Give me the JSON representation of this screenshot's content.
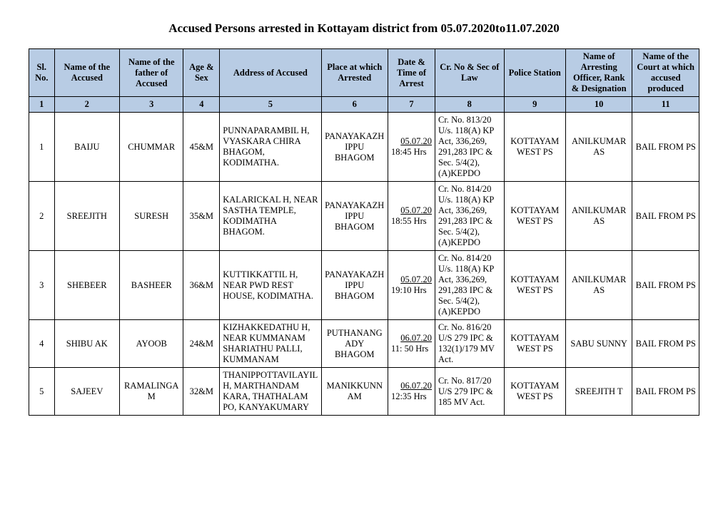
{
  "title": "Accused Persons arrested in  Kottayam   district from  05.07.2020to11.07.2020",
  "headers": {
    "c1": "Sl. No.",
    "c2": "Name of the Accused",
    "c3": "Name of the father of Accused",
    "c4": "Age & Sex",
    "c5": "Address of Accused",
    "c6": "Place at which Arrested",
    "c7": "Date & Time of Arrest",
    "c8": "Cr. No & Sec of Law",
    "c9": "Police Station",
    "c10": "Name of Arresting Officer, Rank & Designation",
    "c11": "Name of the Court at which accused produced"
  },
  "colnums": [
    "1",
    "2",
    "3",
    "4",
    "5",
    "6",
    "7",
    "8",
    "9",
    "10",
    "11"
  ],
  "rows": [
    {
      "sl": "1",
      "accused": "BAIJU",
      "father": "CHUMMAR",
      "age_sex": "45&M",
      "address": "PUNNAPARAMBIL H, VYASKARA CHIRA BHAGOM, KODIMATHA.",
      "place": "PANAYAKAZHIPPU BHAGOM",
      "date": "05.07.20",
      "time": "18:45 Hrs",
      "law": "Cr. No. 813/20 U/s. 118(A) KP Act,  336,269, 291,283 IPC & Sec. 5/4(2),(A)KEPDO",
      "station": "KOTTAYAM WEST PS",
      "officer": "ANILKUMAR AS",
      "court": "BAIL FROM PS"
    },
    {
      "sl": "2",
      "accused": "SREEJITH",
      "father": "SURESH",
      "age_sex": "35&M",
      "address": "KALARICKAL H, NEAR SASTHA TEMPLE, KODIMATHA BHAGOM.",
      "place": "PANAYAKAZHIPPU BHAGOM",
      "date": "05.07.20",
      "time": "18:55 Hrs",
      "law": "Cr. No. 814/20 U/s. 118(A) KP Act,  336,269, 291,283 IPC & Sec. 5/4(2),(A)KEPDO",
      "station": "KOTTAYAM WEST PS",
      "officer": "ANILKUMAR AS",
      "court": "BAIL FROM PS"
    },
    {
      "sl": "3",
      "accused": "SHEBEER",
      "father": "BASHEER",
      "age_sex": "36&M",
      "address": "KUTTIKKATTIL H, NEAR PWD REST HOUSE, KODIMATHA.",
      "place": "PANAYAKAZHIPPU BHAGOM",
      "date": "05.07.20",
      "time": "19:10 Hrs",
      "law": "Cr. No. 814/20 U/s. 118(A) KP Act,  336,269, 291,283 IPC & Sec. 5/4(2),(A)KEPDO",
      "station": "KOTTAYAM WEST PS",
      "officer": "ANILKUMAR AS",
      "court": "BAIL FROM PS"
    },
    {
      "sl": "4",
      "accused": "SHIBU AK",
      "father": "AYOOB",
      "age_sex": "24&M",
      "address": "KIZHAKKEDATHU H, NEAR KUMMANAM SHARIATHU PALLI, KUMMANAM",
      "place": "PUTHANANGADY BHAGOM",
      "date": "06.07.20",
      "time": "11: 50 Hrs",
      "law": "Cr. No. 816/20 U/S 279 IPC & 132(1)/179 MV Act.",
      "station": "KOTTAYAM WEST PS",
      "officer": "SABU SUNNY",
      "court": "BAIL FROM PS"
    },
    {
      "sl": "5",
      "accused": "SAJEEV",
      "father": "RAMALINGAM",
      "age_sex": "32&M",
      "address": "THANIPPOTTAVILAYIL H, MARTHANDAM KARA, THATHALAM PO, KANYAKUMARY",
      "place": "MANIKKUNNAM",
      "date": "06.07.20",
      "time": "12:35 Hrs",
      "law": "Cr. No. 817/20 U/S 279 IPC & 185 MV Act.",
      "station": "KOTTAYAM WEST PS",
      "officer": "SREEJITH T",
      "court": "BAIL FROM PS"
    }
  ]
}
